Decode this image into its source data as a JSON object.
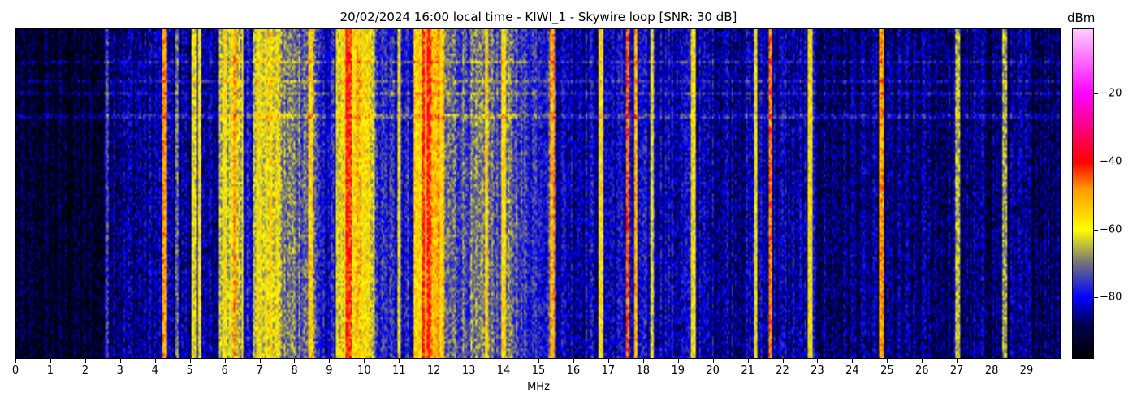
{
  "chart_data": {
    "type": "heatmap",
    "title": "20/02/2024 16:00 local time - KIWI_1 - Skywire loop [SNR: 30 dB]",
    "xlabel": "MHz",
    "xlim": [
      0,
      30
    ],
    "xticks": [
      0,
      1,
      2,
      3,
      4,
      5,
      6,
      7,
      8,
      9,
      10,
      11,
      12,
      13,
      14,
      15,
      16,
      17,
      18,
      19,
      20,
      21,
      22,
      23,
      24,
      25,
      26,
      27,
      28,
      29
    ],
    "colorbar": {
      "label": "dBm",
      "range": [
        -98,
        -1
      ],
      "ticks": [
        -20,
        -40,
        -60,
        -80
      ],
      "colormap": [
        [
          -98,
          "#000000"
        ],
        [
          -88,
          "#000050"
        ],
        [
          -80,
          "#0000ff"
        ],
        [
          -70,
          "#707080"
        ],
        [
          -60,
          "#ffff00"
        ],
        [
          -48,
          "#ff9900"
        ],
        [
          -40,
          "#ff0000"
        ],
        [
          -20,
          "#ff00ff"
        ],
        [
          -1,
          "#ffccff"
        ]
      ]
    },
    "background_bands": [
      {
        "from": 0,
        "to": 2.5,
        "dbm": -93
      },
      {
        "from": 2.5,
        "to": 5.8,
        "dbm": -85
      },
      {
        "from": 5.8,
        "to": 6.5,
        "dbm": -63
      },
      {
        "from": 6.5,
        "to": 6.8,
        "dbm": -78
      },
      {
        "from": 6.8,
        "to": 7.6,
        "dbm": -61
      },
      {
        "from": 7.6,
        "to": 8.6,
        "dbm": -70
      },
      {
        "from": 8.6,
        "to": 9.2,
        "dbm": -80
      },
      {
        "from": 9.2,
        "to": 10.3,
        "dbm": -60
      },
      {
        "from": 10.3,
        "to": 11.4,
        "dbm": -78
      },
      {
        "from": 11.4,
        "to": 12.3,
        "dbm": -56
      },
      {
        "from": 12.3,
        "to": 14.5,
        "dbm": -72
      },
      {
        "from": 14.5,
        "to": 15.5,
        "dbm": -76
      },
      {
        "from": 15.5,
        "to": 19.5,
        "dbm": -82
      },
      {
        "from": 19.5,
        "to": 23,
        "dbm": -84
      },
      {
        "from": 23,
        "to": 30,
        "dbm": -87
      }
    ],
    "carriers": [
      {
        "mhz": 2.6,
        "dbm": -74
      },
      {
        "mhz": 4.27,
        "dbm": -50
      },
      {
        "mhz": 4.6,
        "dbm": -70
      },
      {
        "mhz": 5.1,
        "dbm": -62
      },
      {
        "mhz": 5.25,
        "dbm": -58
      },
      {
        "mhz": 6.0,
        "dbm": -58
      },
      {
        "mhz": 6.3,
        "dbm": -50
      },
      {
        "mhz": 7.3,
        "dbm": -57
      },
      {
        "mhz": 8.45,
        "dbm": -54
      },
      {
        "mhz": 9.5,
        "dbm": -42
      },
      {
        "mhz": 9.6,
        "dbm": -45
      },
      {
        "mhz": 9.8,
        "dbm": -52
      },
      {
        "mhz": 11.0,
        "dbm": -60
      },
      {
        "mhz": 11.7,
        "dbm": -42
      },
      {
        "mhz": 11.85,
        "dbm": -42
      },
      {
        "mhz": 12.1,
        "dbm": -50
      },
      {
        "mhz": 13.5,
        "dbm": -55
      },
      {
        "mhz": 14.0,
        "dbm": -56
      },
      {
        "mhz": 15.4,
        "dbm": -50
      },
      {
        "mhz": 16.8,
        "dbm": -58
      },
      {
        "mhz": 17.55,
        "dbm": -45
      },
      {
        "mhz": 17.8,
        "dbm": -52
      },
      {
        "mhz": 18.25,
        "dbm": -60
      },
      {
        "mhz": 19.45,
        "dbm": -58
      },
      {
        "mhz": 21.25,
        "dbm": -60
      },
      {
        "mhz": 21.65,
        "dbm": -47
      },
      {
        "mhz": 22.8,
        "dbm": -60
      },
      {
        "mhz": 24.85,
        "dbm": -50
      },
      {
        "mhz": 27.05,
        "dbm": -65
      },
      {
        "mhz": 28.4,
        "dbm": -66
      }
    ]
  }
}
